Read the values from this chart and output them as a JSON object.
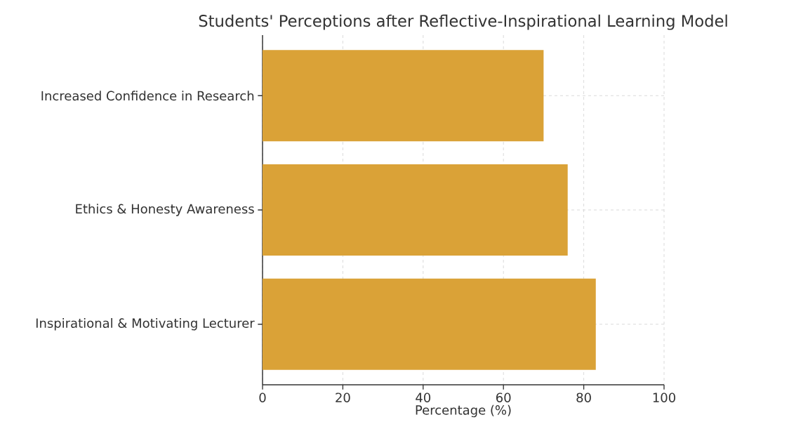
{
  "chart_data": {
    "type": "bar",
    "orientation": "horizontal",
    "title": "Students' Perceptions after Reflective-Inspirational Learning Model",
    "xlabel": "Percentage (%)",
    "categories": [
      "Increased Confidence in Research",
      "Ethics & Honesty Awareness",
      "Inspirational & Motivating Lecturer"
    ],
    "values": [
      70,
      76,
      83
    ],
    "color": "#daa237",
    "xlim": [
      0,
      100
    ],
    "xticks": [
      0,
      20,
      40,
      60,
      80,
      100
    ],
    "grid": true
  }
}
